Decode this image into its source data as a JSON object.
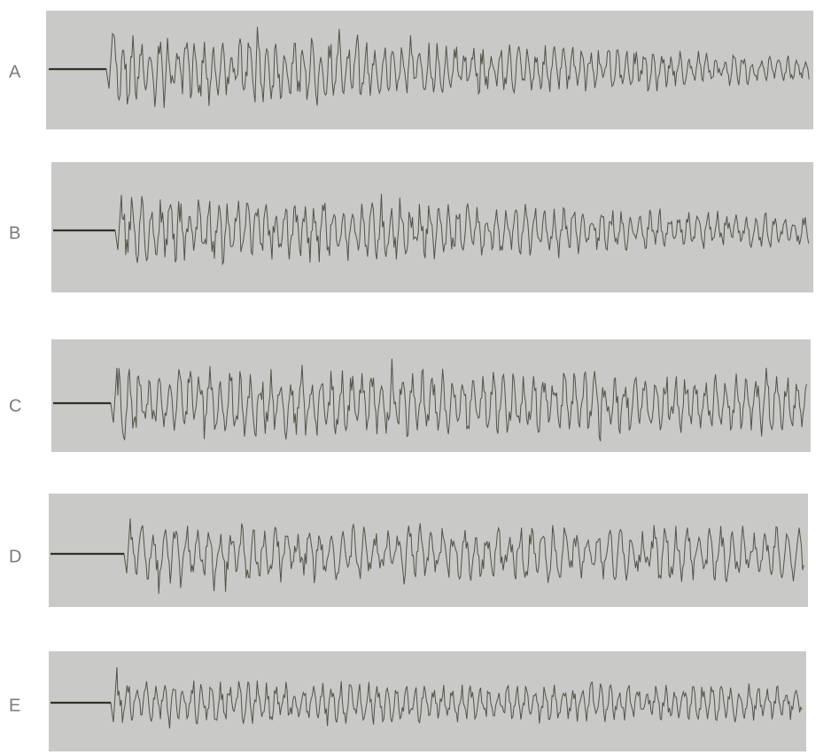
{
  "panels": [
    {
      "label": "A"
    },
    {
      "label": "B"
    },
    {
      "label": "C"
    },
    {
      "label": "D"
    },
    {
      "label": "E"
    }
  ]
}
